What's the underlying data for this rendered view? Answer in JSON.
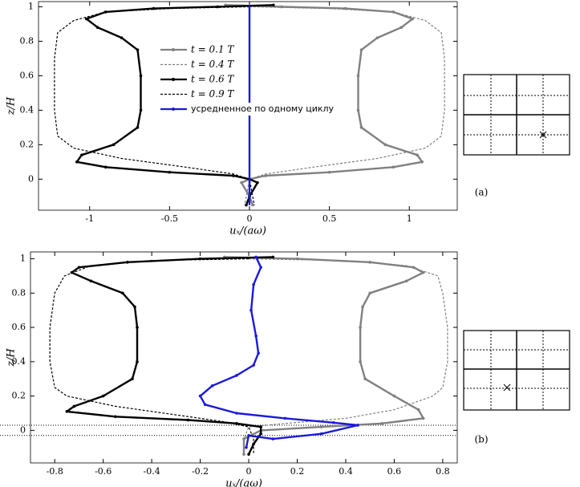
{
  "chart_data": [
    {
      "type": "line",
      "panel_label": "(a)",
      "xlabel": "uₓ/(aω)",
      "ylabel": "z/H",
      "xlim": [
        -1.32,
        1.3
      ],
      "ylim": [
        -0.18,
        1.03
      ],
      "xticks": [
        -1,
        -0.5,
        0,
        0.5,
        1
      ],
      "yticks": [
        0,
        0.2,
        0.4,
        0.6,
        0.8,
        1
      ],
      "legend": true,
      "series": [
        {
          "name": "t = 0.1 T",
          "color": "#808080",
          "dash": false,
          "marker": true,
          "x": [
            -0.15,
            0.2,
            0.6,
            0.9,
            1.02,
            0.95,
            0.8,
            0.7,
            0.68,
            0.68,
            0.7,
            0.85,
            1.05,
            1.08,
            0.9,
            0.5,
            0.1,
            0,
            -0.05,
            0,
            0.02
          ],
          "values": [
            1.01,
            1.0,
            0.99,
            0.97,
            0.93,
            0.88,
            0.82,
            0.75,
            0.6,
            0.4,
            0.3,
            0.2,
            0.14,
            0.1,
            0.07,
            0.04,
            0.02,
            0,
            -0.02,
            -0.1,
            -0.15
          ]
        },
        {
          "name": "t = 0.4 T",
          "color": "#808080",
          "dash": true,
          "marker": false,
          "x": [
            0,
            0.5,
            0.9,
            1.1,
            1.2,
            1.22,
            1.22,
            1.2,
            1.1,
            0.8,
            0.4,
            0.1,
            0,
            -0.02,
            -0.03
          ],
          "values": [
            1.0,
            0.99,
            0.97,
            0.92,
            0.85,
            0.7,
            0.4,
            0.25,
            0.18,
            0.12,
            0.07,
            0.03,
            0,
            -0.1,
            -0.15
          ]
        },
        {
          "name": "t = 0.6 T",
          "color": "#000000",
          "dash": false,
          "marker": true,
          "x": [
            0.15,
            -0.2,
            -0.6,
            -0.9,
            -1.02,
            -0.95,
            -0.8,
            -0.7,
            -0.68,
            -0.68,
            -0.7,
            -0.85,
            -1.05,
            -1.08,
            -0.9,
            -0.5,
            -0.1,
            0,
            0.05,
            0,
            -0.02
          ],
          "values": [
            1.01,
            1.0,
            0.99,
            0.97,
            0.93,
            0.88,
            0.82,
            0.75,
            0.6,
            0.4,
            0.3,
            0.2,
            0.14,
            0.1,
            0.07,
            0.04,
            0.02,
            0,
            -0.02,
            -0.1,
            -0.15
          ]
        },
        {
          "name": "t = 0.9 T",
          "color": "#000000",
          "dash": true,
          "marker": false,
          "x": [
            0,
            -0.5,
            -0.9,
            -1.1,
            -1.2,
            -1.22,
            -1.22,
            -1.2,
            -1.1,
            -0.8,
            -0.4,
            -0.1,
            0,
            0.02,
            0.03
          ],
          "values": [
            1.0,
            0.99,
            0.97,
            0.92,
            0.85,
            0.7,
            0.4,
            0.25,
            0.18,
            0.12,
            0.07,
            0.03,
            0,
            -0.1,
            -0.15
          ]
        },
        {
          "name": "усредненное по одному циклу",
          "color": "#1a1adb",
          "dash": false,
          "marker": false,
          "x": [
            0,
            0
          ],
          "values": [
            1.01,
            -0.15
          ]
        }
      ]
    },
    {
      "type": "line",
      "panel_label": "(b)",
      "xlabel": "uₓ/(aω)",
      "ylabel": "z/H",
      "xlim": [
        -0.9,
        0.86
      ],
      "ylim": [
        -0.19,
        1.04
      ],
      "xticks": [
        -0.8,
        -0.6,
        -0.4,
        -0.2,
        0,
        0.2,
        0.4,
        0.6,
        0.8
      ],
      "yticks": [
        0,
        0.2,
        0.4,
        0.6,
        0.8,
        1
      ],
      "legend": false,
      "hlines": [
        0.03,
        -0.03
      ],
      "series": [
        {
          "color": "#808080",
          "dash": false,
          "marker": true,
          "x": [
            -0.1,
            0.2,
            0.5,
            0.68,
            0.72,
            0.65,
            0.5,
            0.47,
            0.46,
            0.46,
            0.48,
            0.6,
            0.7,
            0.72,
            0.55,
            0.3,
            0.05,
            -0.02,
            -0.02
          ],
          "values": [
            1.01,
            1.0,
            0.98,
            0.95,
            0.92,
            0.87,
            0.8,
            0.72,
            0.6,
            0.4,
            0.3,
            0.2,
            0.12,
            0.07,
            0.04,
            0.02,
            0,
            -0.05,
            -0.14
          ]
        },
        {
          "color": "#808080",
          "dash": true,
          "marker": false,
          "x": [
            0,
            0.4,
            0.65,
            0.78,
            0.8,
            0.82,
            0.82,
            0.8,
            0.76,
            0.6,
            0.4,
            0.15,
            0,
            -0.02,
            -0.02
          ],
          "values": [
            1.0,
            0.99,
            0.96,
            0.9,
            0.8,
            0.6,
            0.4,
            0.25,
            0.2,
            0.12,
            0.07,
            0.04,
            0.02,
            -0.05,
            -0.14
          ]
        },
        {
          "color": "#000000",
          "dash": false,
          "marker": true,
          "x": [
            0.1,
            -0.2,
            -0.5,
            -0.7,
            -0.73,
            -0.65,
            -0.52,
            -0.47,
            -0.46,
            -0.46,
            -0.48,
            -0.6,
            -0.72,
            -0.75,
            -0.55,
            -0.25,
            -0.05,
            0.05,
            0.05,
            0.02,
            0
          ],
          "values": [
            1.01,
            1.0,
            0.98,
            0.95,
            0.92,
            0.87,
            0.8,
            0.72,
            0.6,
            0.4,
            0.3,
            0.2,
            0.14,
            0.11,
            0.08,
            0.06,
            0.04,
            0.02,
            -0.02,
            -0.08,
            -0.14
          ]
        },
        {
          "color": "#000000",
          "dash": true,
          "marker": false,
          "x": [
            0,
            -0.4,
            -0.65,
            -0.76,
            -0.8,
            -0.82,
            -0.82,
            -0.8,
            -0.75,
            -0.55,
            -0.3,
            -0.1,
            0,
            0.02,
            0.02
          ],
          "values": [
            1.0,
            0.99,
            0.96,
            0.9,
            0.8,
            0.6,
            0.4,
            0.25,
            0.2,
            0.14,
            0.09,
            0.05,
            0.02,
            -0.05,
            -0.14
          ]
        },
        {
          "color": "#1a1adb",
          "dash": false,
          "marker": true,
          "x": [
            0.03,
            0.05,
            0.02,
            0.01,
            0.03,
            0.04,
            0.02,
            -0.05,
            -0.15,
            -0.2,
            -0.18,
            -0.05,
            0.15,
            0.35,
            0.45,
            0.3,
            0.1,
            0,
            -0.01
          ],
          "values": [
            1.01,
            0.95,
            0.85,
            0.7,
            0.55,
            0.45,
            0.38,
            0.32,
            0.26,
            0.2,
            0.15,
            0.1,
            0.07,
            0.045,
            0.03,
            -0.02,
            -0.05,
            -0.03,
            -0.1
          ]
        }
      ]
    }
  ]
}
